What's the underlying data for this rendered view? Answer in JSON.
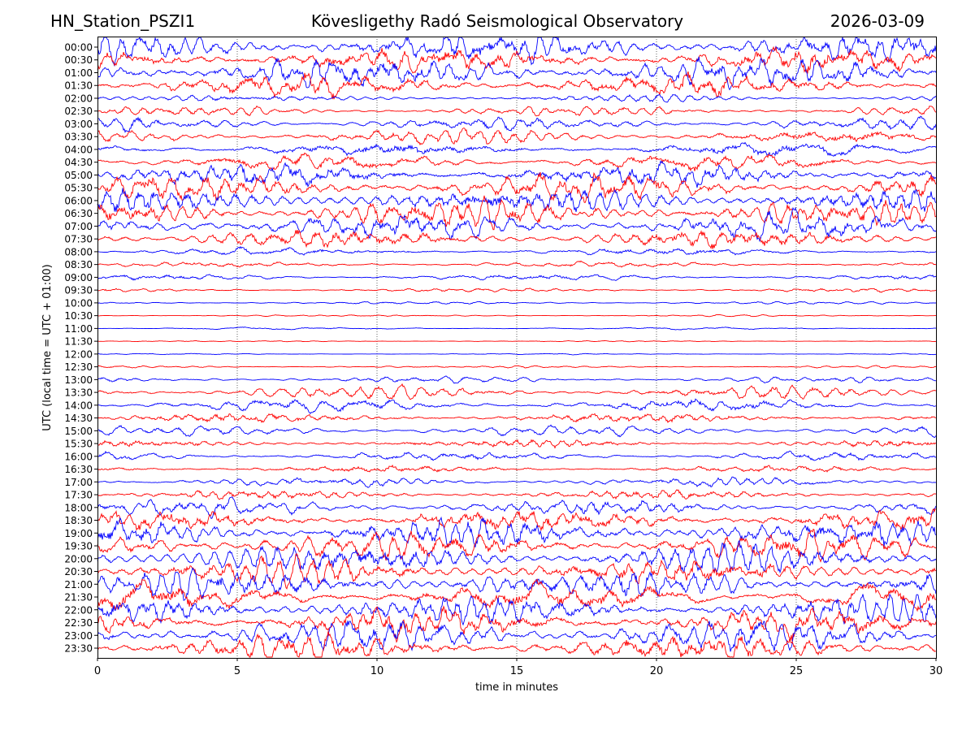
{
  "header": {
    "station": "HN_Station_PSZI1",
    "observatory": "Kövesligethy Radó Seismological Observatory",
    "date": "2026-03-09"
  },
  "chart_data": {
    "type": "line",
    "title": "Kövesligethy Radó Seismological Observatory",
    "xlabel": "time in minutes",
    "ylabel": "UTC (local time = UTC + 01:00)",
    "xlim": [
      0,
      30
    ],
    "x_ticks": [
      0,
      5,
      10,
      15,
      20,
      25,
      30
    ],
    "grid": "vertical dotted at x ticks",
    "trace_colors": [
      "#0000ff",
      "#ff0000"
    ],
    "rows": [
      {
        "label": "00:00",
        "amplitude": 1.0
      },
      {
        "label": "00:30",
        "amplitude": 1.0
      },
      {
        "label": "01:00",
        "amplitude": 1.0
      },
      {
        "label": "01:30",
        "amplitude": 0.9
      },
      {
        "label": "02:00",
        "amplitude": 0.25
      },
      {
        "label": "02:30",
        "amplitude": 0.3
      },
      {
        "label": "03:00",
        "amplitude": 0.45
      },
      {
        "label": "03:30",
        "amplitude": 0.5
      },
      {
        "label": "04:00",
        "amplitude": 0.55
      },
      {
        "label": "04:30",
        "amplitude": 0.6
      },
      {
        "label": "05:00",
        "amplitude": 0.9
      },
      {
        "label": "05:30",
        "amplitude": 1.0
      },
      {
        "label": "06:00",
        "amplitude": 1.0
      },
      {
        "label": "06:30",
        "amplitude": 0.95
      },
      {
        "label": "07:00",
        "amplitude": 0.85
      },
      {
        "label": "07:30",
        "amplitude": 0.7
      },
      {
        "label": "08:00",
        "amplitude": 0.3
      },
      {
        "label": "08:30",
        "amplitude": 0.2
      },
      {
        "label": "09:00",
        "amplitude": 0.22
      },
      {
        "label": "09:30",
        "amplitude": 0.15
      },
      {
        "label": "10:00",
        "amplitude": 0.1
      },
      {
        "label": "10:30",
        "amplitude": 0.06
      },
      {
        "label": "11:00",
        "amplitude": 0.08
      },
      {
        "label": "11:30",
        "amplitude": 0.05
      },
      {
        "label": "12:00",
        "amplitude": 0.05
      },
      {
        "label": "12:30",
        "amplitude": 0.08
      },
      {
        "label": "13:00",
        "amplitude": 0.2
      },
      {
        "label": "13:30",
        "amplitude": 0.4
      },
      {
        "label": "14:00",
        "amplitude": 0.45
      },
      {
        "label": "14:30",
        "amplitude": 0.4
      },
      {
        "label": "15:00",
        "amplitude": 0.3
      },
      {
        "label": "15:30",
        "amplitude": 0.35
      },
      {
        "label": "16:00",
        "amplitude": 0.3
      },
      {
        "label": "16:30",
        "amplitude": 0.3
      },
      {
        "label": "17:00",
        "amplitude": 0.3
      },
      {
        "label": "17:30",
        "amplitude": 0.35
      },
      {
        "label": "18:00",
        "amplitude": 0.5
      },
      {
        "label": "18:30",
        "amplitude": 0.85
      },
      {
        "label": "19:00",
        "amplitude": 1.0
      },
      {
        "label": "19:30",
        "amplitude": 1.0
      },
      {
        "label": "20:00",
        "amplitude": 1.0
      },
      {
        "label": "20:30",
        "amplitude": 1.0
      },
      {
        "label": "21:00",
        "amplitude": 1.0
      },
      {
        "label": "21:30",
        "amplitude": 1.0
      },
      {
        "label": "22:00",
        "amplitude": 1.0
      },
      {
        "label": "22:30",
        "amplitude": 1.0
      },
      {
        "label": "23:00",
        "amplitude": 1.0
      },
      {
        "label": "23:30",
        "amplitude": 1.0
      }
    ]
  }
}
